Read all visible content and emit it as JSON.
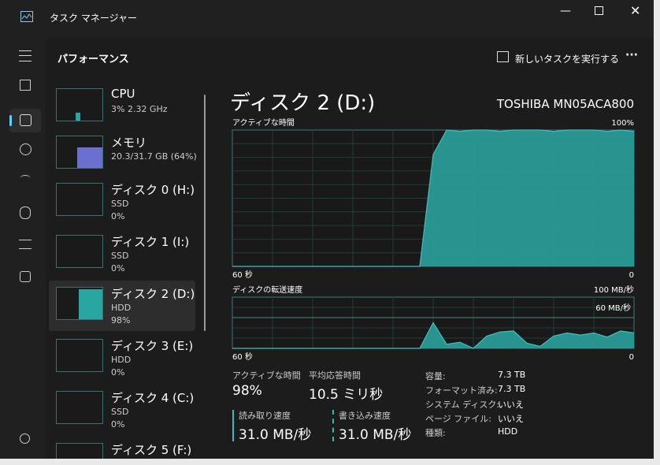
{
  "window": {
    "title": "タスク マネージャー"
  },
  "header": {
    "title": "パフォーマンス",
    "run_task": "新しいタスクを実行する"
  },
  "sidebar": [
    {
      "name": "CPU",
      "line1": "3%  2.32 GHz"
    },
    {
      "name": "メモリ",
      "line1": "20.3/31.7 GB (64%)"
    },
    {
      "name": "ディスク 0 (H:)",
      "line1": "SSD",
      "line2": "0%"
    },
    {
      "name": "ディスク 1 (I:)",
      "line1": "SSD",
      "line2": "0%"
    },
    {
      "name": "ディスク 2 (D:)",
      "line1": "HDD",
      "line2": "98%"
    },
    {
      "name": "ディスク 3 (E:)",
      "line1": "HDD",
      "line2": "0%"
    },
    {
      "name": "ディスク 4 (C:)",
      "line1": "SSD",
      "line2": "0%"
    },
    {
      "name": "ディスク 5 (F:)"
    }
  ],
  "detail": {
    "title": "ディスク 2 (D:)",
    "model": "TOSHIBA MN05ACA800"
  },
  "activity_chart": {
    "label": "アクティブな時間",
    "x_left": "60 秒",
    "x_right": "0",
    "ylim": [
      0,
      100
    ],
    "yticks": [
      {
        "value": 100,
        "label": "100%"
      }
    ],
    "values": [
      0,
      0,
      0,
      0,
      0,
      0,
      0,
      0,
      0,
      0,
      0,
      0,
      0,
      0,
      0,
      82,
      100,
      99,
      100,
      100,
      99,
      100,
      100,
      100,
      99,
      100,
      100,
      100,
      99,
      100,
      99
    ]
  },
  "transfer_chart": {
    "label": "ディスクの転送速度",
    "x_left": "60 秒",
    "x_right": "0",
    "ylim": [
      0,
      100
    ],
    "yticks": [
      {
        "value": 100,
        "label": "100 MB/秒"
      }
    ],
    "ref_line": {
      "value": 60,
      "label": "60 MB/秒"
    },
    "values": [
      0,
      0,
      0,
      0,
      0,
      0,
      0,
      0,
      0,
      0,
      0,
      0,
      0,
      0,
      0,
      50,
      8,
      12,
      0,
      24,
      32,
      34,
      10,
      4,
      24,
      30,
      26,
      30,
      22,
      34,
      30
    ]
  },
  "stats": [
    {
      "label": "アクティブな時間",
      "value": "98%"
    },
    {
      "label": "平均応答時間",
      "value": "10.5 ミリ秒"
    },
    {
      "label": "読み取り速度",
      "value": "31.0 MB/秒"
    },
    {
      "label": "書き込み速度",
      "value": "31.0 MB/秒"
    }
  ],
  "properties": [
    {
      "key": "容量:",
      "value": "7.3 TB"
    },
    {
      "key": "フォーマット済み:",
      "value": "7.3 TB"
    },
    {
      "key": "システム ディスク:",
      "value": "いいえ"
    },
    {
      "key": "ページ ファイル:",
      "value": "いいえ"
    },
    {
      "key": "種類:",
      "value": "HDD"
    }
  ]
}
